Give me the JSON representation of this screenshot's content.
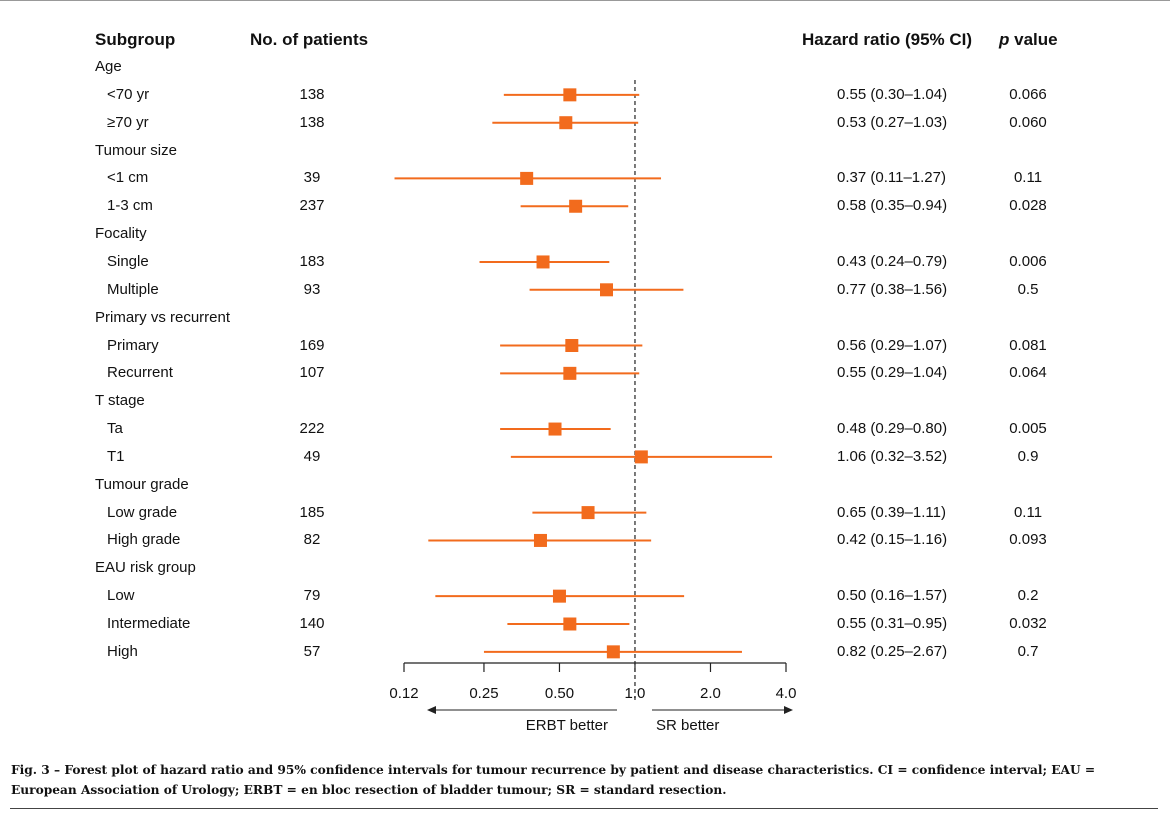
{
  "headers": {
    "subgroup": "Subgroup",
    "patients": "No. of patients",
    "hazard_ratio": "Hazard ratio  (95% CI)",
    "p_prefix": "p",
    "p_suffix": " value"
  },
  "colors": {
    "marker": "#f26b1d",
    "line": "#222222"
  },
  "chart_data": {
    "type": "forest",
    "x_scale": "log",
    "reference_line": 1.0,
    "xlim": [
      0.12,
      4.0
    ],
    "ticks": [
      0.12,
      0.25,
      0.5,
      1.0,
      2.0,
      4.0
    ],
    "tick_labels": [
      "0.12",
      "0.25",
      "0.50",
      "1.0",
      "2.0",
      "4.0"
    ],
    "direction_left": "ERBT better",
    "direction_right": "SR better",
    "rows": [
      {
        "kind": "group",
        "label": "Age"
      },
      {
        "kind": "item",
        "label": "<70 yr",
        "n": "138",
        "hr": 0.55,
        "lo": 0.3,
        "hi": 1.04,
        "hr_text": "0.55 (0.30–1.04)",
        "p": "0.066"
      },
      {
        "kind": "item",
        "label": "≥70 yr",
        "n": "138",
        "hr": 0.53,
        "lo": 0.27,
        "hi": 1.03,
        "hr_text": "0.53 (0.27–1.03)",
        "p": "0.060"
      },
      {
        "kind": "group",
        "label": "Tumour size"
      },
      {
        "kind": "item",
        "label": "<1 cm",
        "n": "39",
        "hr": 0.37,
        "lo": 0.11,
        "hi": 1.27,
        "hr_text": "0.37 (0.11–1.27)",
        "p": "0.11"
      },
      {
        "kind": "item",
        "label": "1-3 cm",
        "n": "237",
        "hr": 0.58,
        "lo": 0.35,
        "hi": 0.94,
        "hr_text": "0.58 (0.35–0.94)",
        "p": "0.028"
      },
      {
        "kind": "group",
        "label": "Focality"
      },
      {
        "kind": "item",
        "label": "Single",
        "n": "183",
        "hr": 0.43,
        "lo": 0.24,
        "hi": 0.79,
        "hr_text": "0.43 (0.24–0.79)",
        "p": "0.006"
      },
      {
        "kind": "item",
        "label": "Multiple",
        "n": "93",
        "hr": 0.77,
        "lo": 0.38,
        "hi": 1.56,
        "hr_text": "0.77 (0.38–1.56)",
        "p": "0.5"
      },
      {
        "kind": "group",
        "label": "Primary vs recurrent"
      },
      {
        "kind": "item",
        "label": "Primary",
        "n": "169",
        "hr": 0.56,
        "lo": 0.29,
        "hi": 1.07,
        "hr_text": "0.56 (0.29–1.07)",
        "p": "0.081"
      },
      {
        "kind": "item",
        "label": "Recurrent",
        "n": "107",
        "hr": 0.55,
        "lo": 0.29,
        "hi": 1.04,
        "hr_text": "0.55 (0.29–1.04)",
        "p": "0.064"
      },
      {
        "kind": "group",
        "label": "T stage"
      },
      {
        "kind": "item",
        "label": "Ta",
        "n": "222",
        "hr": 0.48,
        "lo": 0.29,
        "hi": 0.8,
        "hr_text": "0.48 (0.29–0.80)",
        "p": "0.005"
      },
      {
        "kind": "item",
        "label": "T1",
        "n": "49",
        "hr": 1.06,
        "lo": 0.32,
        "hi": 3.52,
        "hr_text": "1.06 (0.32–3.52)",
        "p": "0.9"
      },
      {
        "kind": "group",
        "label": "Tumour grade"
      },
      {
        "kind": "item",
        "label": "Low grade",
        "n": "185",
        "hr": 0.65,
        "lo": 0.39,
        "hi": 1.11,
        "hr_text": "0.65 (0.39–1.11)",
        "p": "0.11"
      },
      {
        "kind": "item",
        "label": "High grade",
        "n": "82",
        "hr": 0.42,
        "lo": 0.15,
        "hi": 1.16,
        "hr_text": "0.42 (0.15–1.16)",
        "p": "0.093"
      },
      {
        "kind": "group",
        "label": "EAU risk group"
      },
      {
        "kind": "item",
        "label": "Low",
        "n": "79",
        "hr": 0.5,
        "lo": 0.16,
        "hi": 1.57,
        "hr_text": "0.50 (0.16–1.57)",
        "p": "0.2"
      },
      {
        "kind": "item",
        "label": "Intermediate",
        "n": "140",
        "hr": 0.55,
        "lo": 0.31,
        "hi": 0.95,
        "hr_text": "0.55 (0.31–0.95)",
        "p": "0.032"
      },
      {
        "kind": "item",
        "label": "High",
        "n": "57",
        "hr": 0.82,
        "lo": 0.25,
        "hi": 2.67,
        "hr_text": "0.82 (0.25–2.67)",
        "p": "0.7"
      }
    ]
  },
  "caption": "Fig. 3 – Forest plot of hazard ratio and 95% confidence intervals for tumour recurrence by patient and disease characteristics. CI = confidence interval; EAU = European Association of Urology; ERBT = en bloc resection of bladder tumour; SR = standard resection."
}
